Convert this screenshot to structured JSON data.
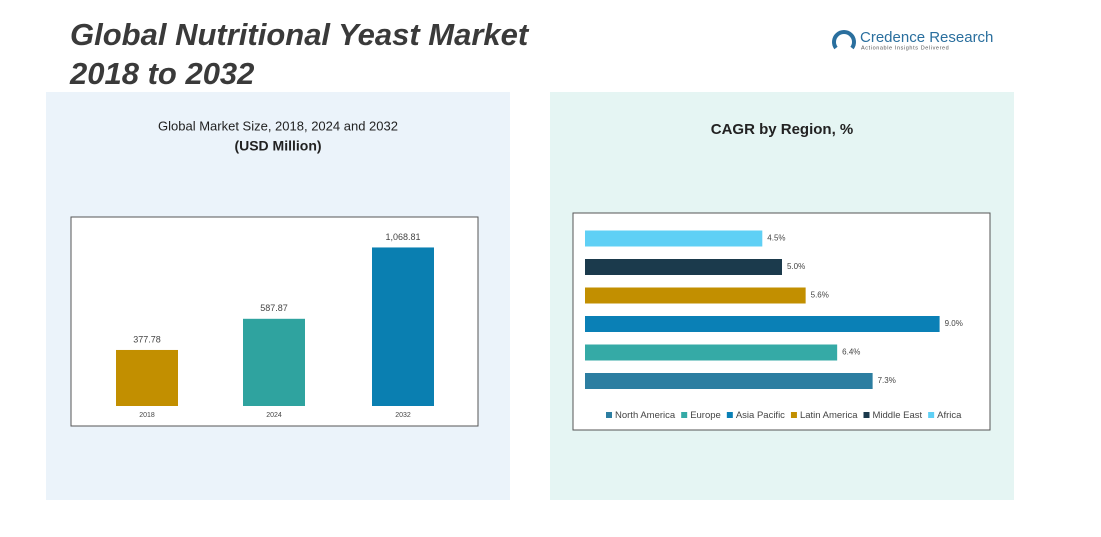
{
  "header": {
    "title_lines": [
      "Global Nutritional Yeast Market",
      "2018 to 2032"
    ],
    "logo_name": "Credence Research",
    "logo_tagline": "Actionable Insights Delivered"
  },
  "chart_data": [
    {
      "type": "bar",
      "title": "Global Market Size, 2018, 2024 and 2032",
      "subtitle": "(USD Million)",
      "categories": [
        "2018",
        "2024",
        "2032"
      ],
      "values": [
        377.78,
        587.87,
        1068.81
      ],
      "value_labels": [
        "377.78",
        "587.87",
        "1,068.81"
      ],
      "colors": [
        "#c28f00",
        "#2fa39f",
        "#0a7fb1"
      ],
      "ylim": [
        0,
        1200
      ]
    },
    {
      "type": "hbar",
      "title": "CAGR by Region, %",
      "categories": [
        "North America",
        "Europe",
        "Asia Pacific",
        "Latin America",
        "Middle East",
        "Africa"
      ],
      "values": [
        7.3,
        6.4,
        9.0,
        5.6,
        5.0,
        4.5
      ],
      "value_labels": [
        "7.3%",
        "6.4%",
        "9.0%",
        "5.6%",
        "5.0%",
        "4.5%"
      ],
      "colors": [
        "#2c7ea1",
        "#35aaa6",
        "#0a80b6",
        "#c28f00",
        "#1b3a4c",
        "#5fd0f5"
      ],
      "xlim": [
        0,
        10
      ],
      "legend": "bottom"
    }
  ]
}
